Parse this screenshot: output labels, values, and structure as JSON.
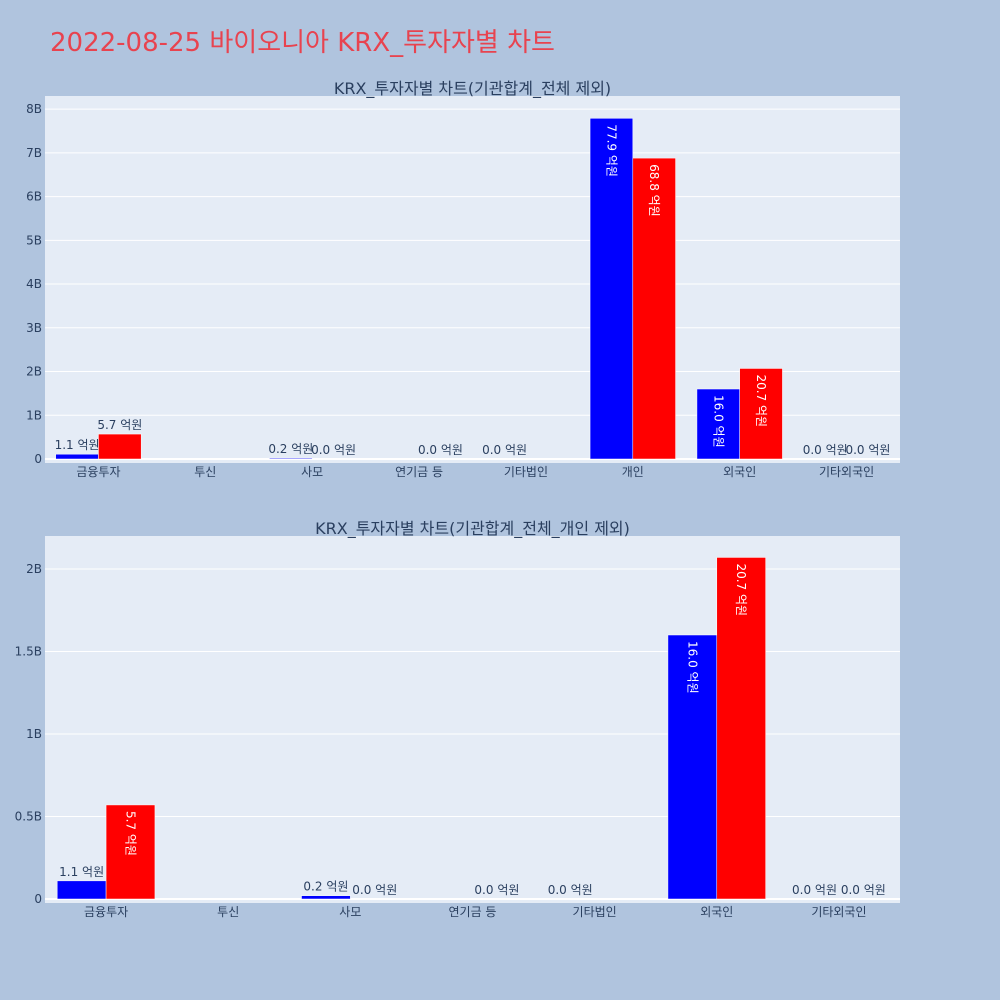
{
  "page": {
    "title": "2022-08-25 바이오니아 KRX_투자자별 차트"
  },
  "colors": {
    "series1": "#0000ff",
    "series2": "#ff0000",
    "background": "#b0c4de",
    "plot_bg": "#e5ecf6",
    "text": "#2a3f5f"
  },
  "chart_data": [
    {
      "type": "bar",
      "title": "KRX_투자자별 차트(기관합계_전체 제외)",
      "categories": [
        "금융투자",
        "투신",
        "사모",
        "연기금 등",
        "기타법인",
        "개인",
        "외국인",
        "기타외국인"
      ],
      "yticks": [
        "0",
        "1B",
        "2B",
        "3B",
        "4B",
        "5B",
        "6B",
        "7B",
        "8B"
      ],
      "ylim": [
        0,
        8300000000
      ],
      "grid": true,
      "series": [
        {
          "values": [
            110000000,
            0,
            20000000,
            0,
            0,
            7790000000,
            1600000000,
            0
          ],
          "labels": [
            "1.1 억원",
            "",
            "0.2 억원",
            "",
            "0.0 억원",
            "77.9 억원",
            "16.0 억원",
            "0.0 억원"
          ]
        },
        {
          "values": [
            570000000,
            0,
            0,
            0,
            0,
            6880000000,
            2070000000,
            0
          ],
          "labels": [
            "5.7 억원",
            "",
            "0.0 억원",
            "0.0 억원",
            "",
            "68.8 억원",
            "20.7 억원",
            "0.0 억원"
          ]
        }
      ]
    },
    {
      "type": "bar",
      "title": "KRX_투자자별 차트(기관합계_전체_개인 제외)",
      "categories": [
        "금융투자",
        "투신",
        "사모",
        "연기금 등",
        "기타법인",
        "외국인",
        "기타외국인"
      ],
      "yticks": [
        "0",
        "0.5B",
        "1B",
        "1.5B",
        "2B"
      ],
      "ylim": [
        0,
        2200000000
      ],
      "grid": true,
      "series": [
        {
          "values": [
            110000000,
            0,
            20000000,
            0,
            0,
            1600000000,
            0
          ],
          "labels": [
            "1.1 억원",
            "",
            "0.2 억원",
            "",
            "0.0 억원",
            "16.0 억원",
            "0.0 억원"
          ]
        },
        {
          "values": [
            570000000,
            0,
            0,
            0,
            0,
            2070000000,
            0
          ],
          "labels": [
            "5.7 억원",
            "",
            "0.0 억원",
            "0.0 억원",
            "",
            "20.7 억원",
            "0.0 억원"
          ]
        }
      ]
    }
  ]
}
